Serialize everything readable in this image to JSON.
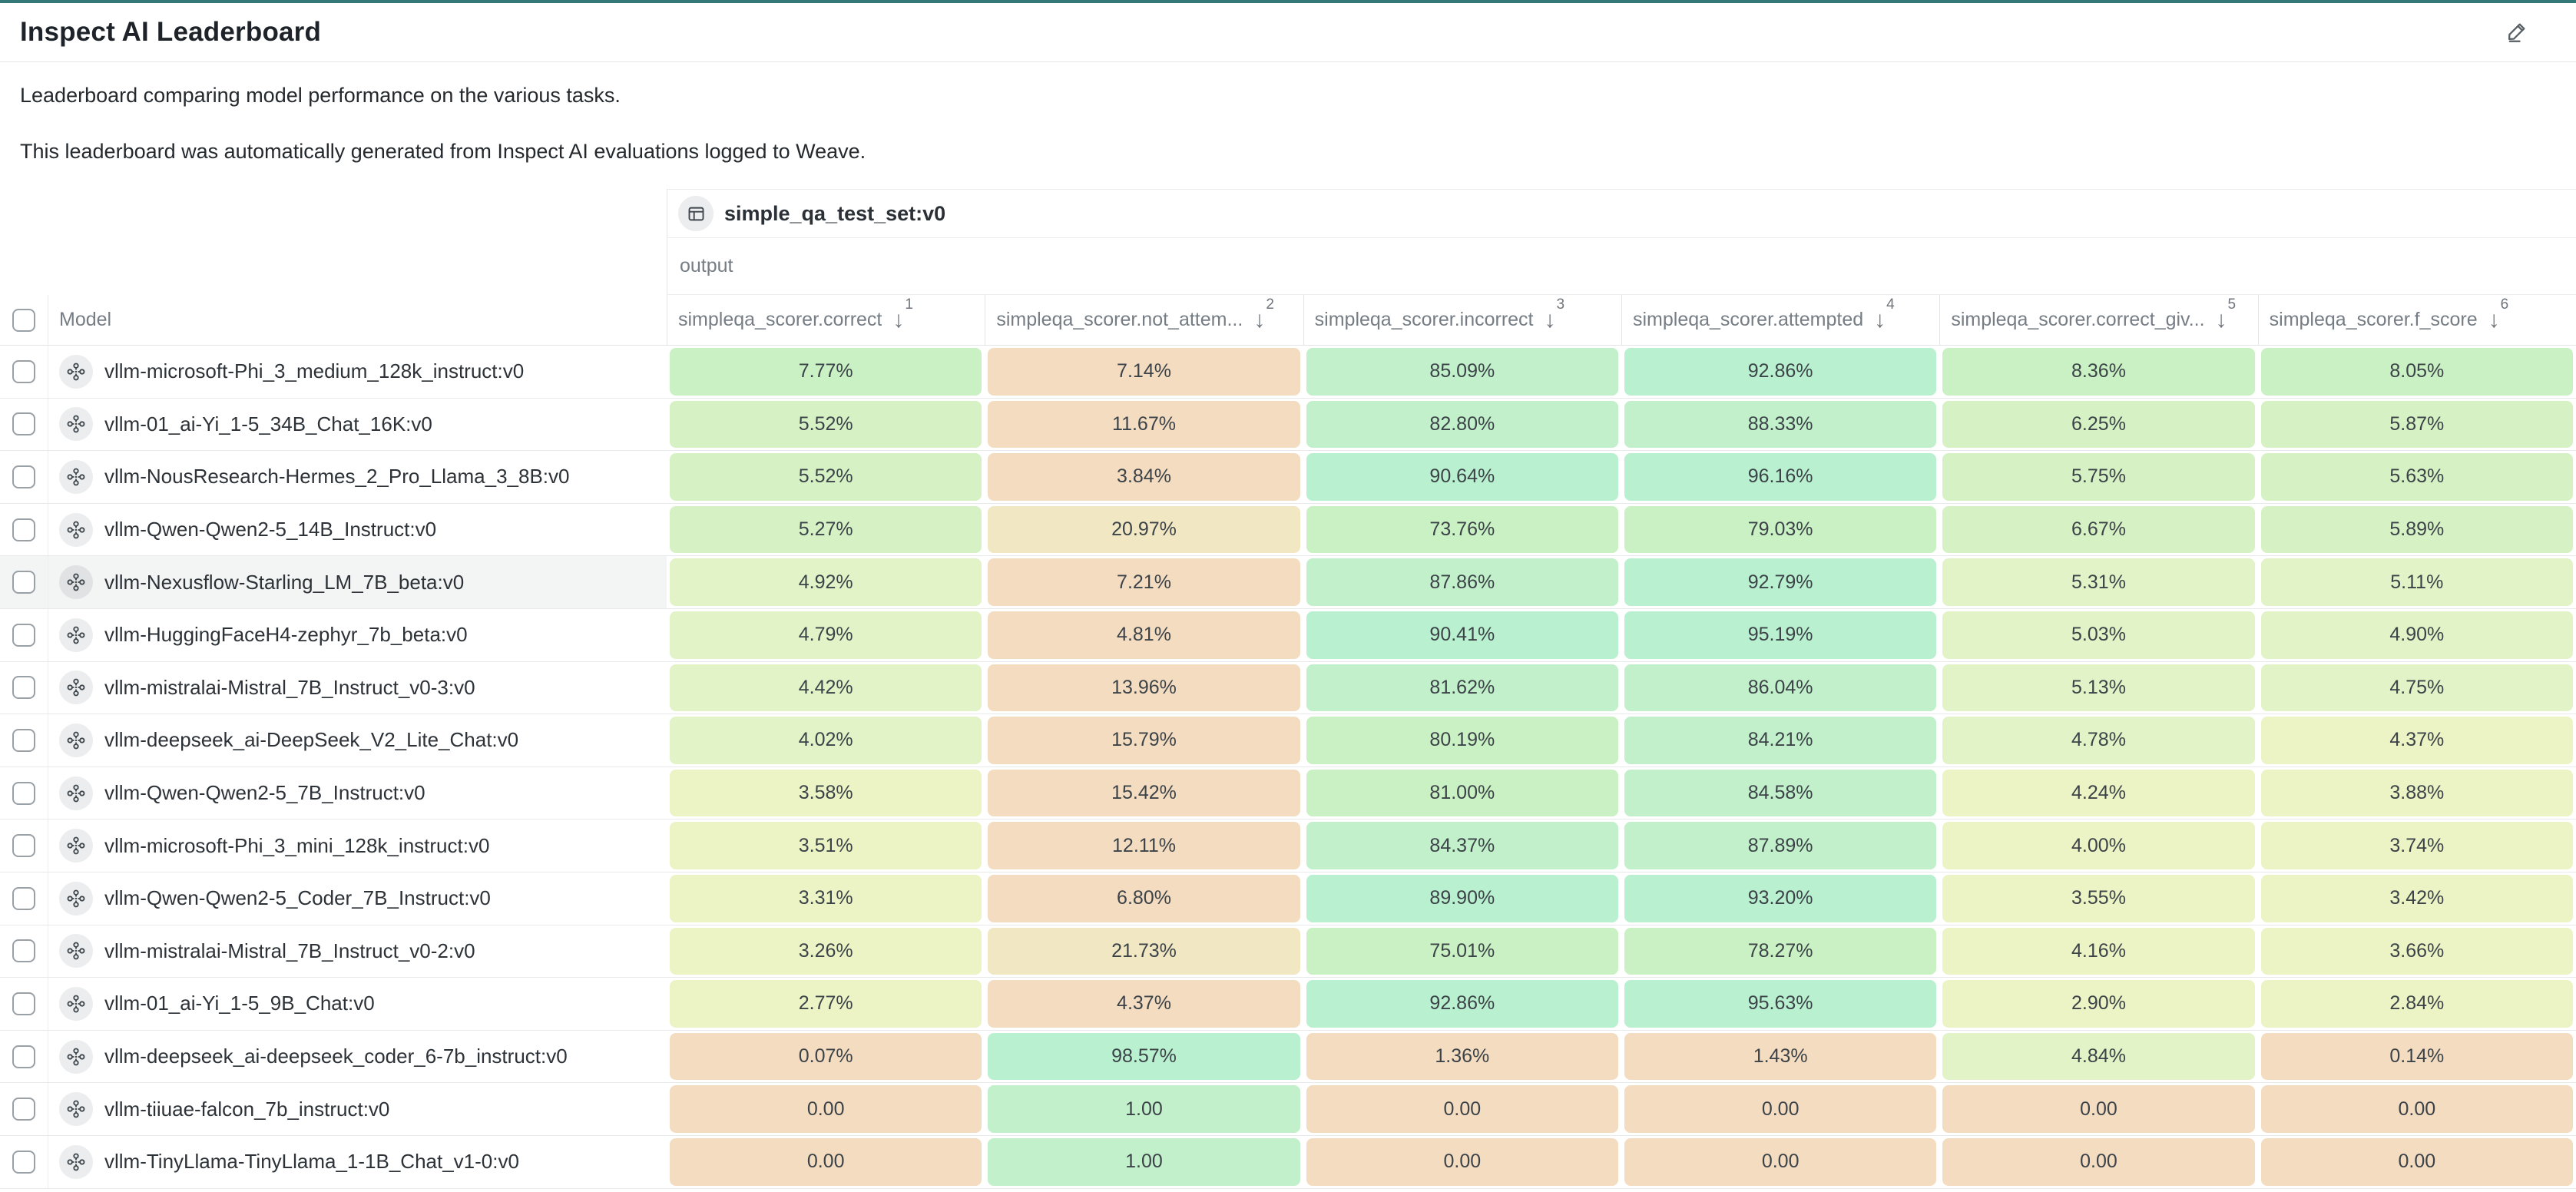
{
  "page": {
    "title": "Inspect AI Leaderboard",
    "description_line1": "Leaderboard comparing model performance on the various tasks.",
    "description_line2": "This leaderboard was automatically generated from Inspect AI evaluations logged to Weave."
  },
  "icons": {
    "sort_desc_arrow": "↓",
    "edit": "pencil-icon",
    "dataset": "table-icon",
    "model": "model-node-icon"
  },
  "colors": {
    "accent_teal": "#357878",
    "header_text": "#1d2329",
    "muted_text": "#767d84",
    "row_hover": "#f3f4f4",
    "cell_text": "#3c4348"
  },
  "tones": {
    "g1": "#b9f0cf",
    "g2": "#c1f0ca",
    "g3": "#c9f1c3",
    "g4": "#d6f2c5",
    "g5": "#e1f3c7",
    "g6": "#ecf4c6",
    "y1": "#f2e7c3",
    "t1": "#f4dcc1"
  },
  "table": {
    "dataset_header": "simple_qa_test_set:v0",
    "output_label": "output",
    "model_column_label": "Model",
    "columns": [
      {
        "label": "simpleqa_scorer.correct",
        "sort_order": 1
      },
      {
        "label": "simpleqa_scorer.not_attem...",
        "sort_order": 2
      },
      {
        "label": "simpleqa_scorer.incorrect",
        "sort_order": 3
      },
      {
        "label": "simpleqa_scorer.attempted",
        "sort_order": 4
      },
      {
        "label": "simpleqa_scorer.correct_giv...",
        "sort_order": 5
      },
      {
        "label": "simpleqa_scorer.f_score",
        "sort_order": 6
      }
    ],
    "rows": [
      {
        "model": "vllm-microsoft-Phi_3_medium_128k_instruct:v0",
        "hovered": false,
        "cells": [
          {
            "value": "7.77%",
            "tone": "g3"
          },
          {
            "value": "7.14%",
            "tone": "t1"
          },
          {
            "value": "85.09%",
            "tone": "g2"
          },
          {
            "value": "92.86%",
            "tone": "g1"
          },
          {
            "value": "8.36%",
            "tone": "g3"
          },
          {
            "value": "8.05%",
            "tone": "g3"
          }
        ]
      },
      {
        "model": "vllm-01_ai-Yi_1-5_34B_Chat_16K:v0",
        "hovered": false,
        "cells": [
          {
            "value": "5.52%",
            "tone": "g4"
          },
          {
            "value": "11.67%",
            "tone": "t1"
          },
          {
            "value": "82.80%",
            "tone": "g2"
          },
          {
            "value": "88.33%",
            "tone": "g2"
          },
          {
            "value": "6.25%",
            "tone": "g4"
          },
          {
            "value": "5.87%",
            "tone": "g4"
          }
        ]
      },
      {
        "model": "vllm-NousResearch-Hermes_2_Pro_Llama_3_8B:v0",
        "hovered": false,
        "cells": [
          {
            "value": "5.52%",
            "tone": "g4"
          },
          {
            "value": "3.84%",
            "tone": "t1"
          },
          {
            "value": "90.64%",
            "tone": "g1"
          },
          {
            "value": "96.16%",
            "tone": "g1"
          },
          {
            "value": "5.75%",
            "tone": "g4"
          },
          {
            "value": "5.63%",
            "tone": "g4"
          }
        ]
      },
      {
        "model": "vllm-Qwen-Qwen2-5_14B_Instruct:v0",
        "hovered": false,
        "cells": [
          {
            "value": "5.27%",
            "tone": "g4"
          },
          {
            "value": "20.97%",
            "tone": "y1"
          },
          {
            "value": "73.76%",
            "tone": "g3"
          },
          {
            "value": "79.03%",
            "tone": "g3"
          },
          {
            "value": "6.67%",
            "tone": "g4"
          },
          {
            "value": "5.89%",
            "tone": "g4"
          }
        ]
      },
      {
        "model": "vllm-Nexusflow-Starling_LM_7B_beta:v0",
        "hovered": true,
        "cells": [
          {
            "value": "4.92%",
            "tone": "g5"
          },
          {
            "value": "7.21%",
            "tone": "t1"
          },
          {
            "value": "87.86%",
            "tone": "g2"
          },
          {
            "value": "92.79%",
            "tone": "g1"
          },
          {
            "value": "5.31%",
            "tone": "g5"
          },
          {
            "value": "5.11%",
            "tone": "g5"
          }
        ]
      },
      {
        "model": "vllm-HuggingFaceH4-zephyr_7b_beta:v0",
        "hovered": false,
        "cells": [
          {
            "value": "4.79%",
            "tone": "g5"
          },
          {
            "value": "4.81%",
            "tone": "t1"
          },
          {
            "value": "90.41%",
            "tone": "g1"
          },
          {
            "value": "95.19%",
            "tone": "g1"
          },
          {
            "value": "5.03%",
            "tone": "g5"
          },
          {
            "value": "4.90%",
            "tone": "g5"
          }
        ]
      },
      {
        "model": "vllm-mistralai-Mistral_7B_Instruct_v0-3:v0",
        "hovered": false,
        "cells": [
          {
            "value": "4.42%",
            "tone": "g5"
          },
          {
            "value": "13.96%",
            "tone": "t1"
          },
          {
            "value": "81.62%",
            "tone": "g2"
          },
          {
            "value": "86.04%",
            "tone": "g2"
          },
          {
            "value": "5.13%",
            "tone": "g5"
          },
          {
            "value": "4.75%",
            "tone": "g5"
          }
        ]
      },
      {
        "model": "vllm-deepseek_ai-DeepSeek_V2_Lite_Chat:v0",
        "hovered": false,
        "cells": [
          {
            "value": "4.02%",
            "tone": "g5"
          },
          {
            "value": "15.79%",
            "tone": "t1"
          },
          {
            "value": "80.19%",
            "tone": "g3"
          },
          {
            "value": "84.21%",
            "tone": "g2"
          },
          {
            "value": "4.78%",
            "tone": "g5"
          },
          {
            "value": "4.37%",
            "tone": "g6"
          }
        ]
      },
      {
        "model": "vllm-Qwen-Qwen2-5_7B_Instruct:v0",
        "hovered": false,
        "cells": [
          {
            "value": "3.58%",
            "tone": "g6"
          },
          {
            "value": "15.42%",
            "tone": "t1"
          },
          {
            "value": "81.00%",
            "tone": "g3"
          },
          {
            "value": "84.58%",
            "tone": "g2"
          },
          {
            "value": "4.24%",
            "tone": "g6"
          },
          {
            "value": "3.88%",
            "tone": "g6"
          }
        ]
      },
      {
        "model": "vllm-microsoft-Phi_3_mini_128k_instruct:v0",
        "hovered": false,
        "cells": [
          {
            "value": "3.51%",
            "tone": "g6"
          },
          {
            "value": "12.11%",
            "tone": "t1"
          },
          {
            "value": "84.37%",
            "tone": "g2"
          },
          {
            "value": "87.89%",
            "tone": "g2"
          },
          {
            "value": "4.00%",
            "tone": "g6"
          },
          {
            "value": "3.74%",
            "tone": "g6"
          }
        ]
      },
      {
        "model": "vllm-Qwen-Qwen2-5_Coder_7B_Instruct:v0",
        "hovered": false,
        "cells": [
          {
            "value": "3.31%",
            "tone": "g6"
          },
          {
            "value": "6.80%",
            "tone": "t1"
          },
          {
            "value": "89.90%",
            "tone": "g1"
          },
          {
            "value": "93.20%",
            "tone": "g1"
          },
          {
            "value": "3.55%",
            "tone": "g6"
          },
          {
            "value": "3.42%",
            "tone": "g6"
          }
        ]
      },
      {
        "model": "vllm-mistralai-Mistral_7B_Instruct_v0-2:v0",
        "hovered": false,
        "cells": [
          {
            "value": "3.26%",
            "tone": "g6"
          },
          {
            "value": "21.73%",
            "tone": "y1"
          },
          {
            "value": "75.01%",
            "tone": "g3"
          },
          {
            "value": "78.27%",
            "tone": "g3"
          },
          {
            "value": "4.16%",
            "tone": "g6"
          },
          {
            "value": "3.66%",
            "tone": "g6"
          }
        ]
      },
      {
        "model": "vllm-01_ai-Yi_1-5_9B_Chat:v0",
        "hovered": false,
        "cells": [
          {
            "value": "2.77%",
            "tone": "g6"
          },
          {
            "value": "4.37%",
            "tone": "t1"
          },
          {
            "value": "92.86%",
            "tone": "g1"
          },
          {
            "value": "95.63%",
            "tone": "g1"
          },
          {
            "value": "2.90%",
            "tone": "g6"
          },
          {
            "value": "2.84%",
            "tone": "g6"
          }
        ]
      },
      {
        "model": "vllm-deepseek_ai-deepseek_coder_6-7b_instruct:v0",
        "hovered": false,
        "cells": [
          {
            "value": "0.07%",
            "tone": "t1"
          },
          {
            "value": "98.57%",
            "tone": "g1"
          },
          {
            "value": "1.36%",
            "tone": "t1"
          },
          {
            "value": "1.43%",
            "tone": "t1"
          },
          {
            "value": "4.84%",
            "tone": "g5"
          },
          {
            "value": "0.14%",
            "tone": "t1"
          }
        ]
      },
      {
        "model": "vllm-tiiuae-falcon_7b_instruct:v0",
        "hovered": false,
        "cells": [
          {
            "value": "0.00",
            "tone": "t1"
          },
          {
            "value": "1.00",
            "tone": "g2"
          },
          {
            "value": "0.00",
            "tone": "t1"
          },
          {
            "value": "0.00",
            "tone": "t1"
          },
          {
            "value": "0.00",
            "tone": "t1"
          },
          {
            "value": "0.00",
            "tone": "t1"
          }
        ]
      },
      {
        "model": "vllm-TinyLlama-TinyLlama_1-1B_Chat_v1-0:v0",
        "hovered": false,
        "cells": [
          {
            "value": "0.00",
            "tone": "t1"
          },
          {
            "value": "1.00",
            "tone": "g2"
          },
          {
            "value": "0.00",
            "tone": "t1"
          },
          {
            "value": "0.00",
            "tone": "t1"
          },
          {
            "value": "0.00",
            "tone": "t1"
          },
          {
            "value": "0.00",
            "tone": "t1"
          }
        ]
      }
    ]
  }
}
